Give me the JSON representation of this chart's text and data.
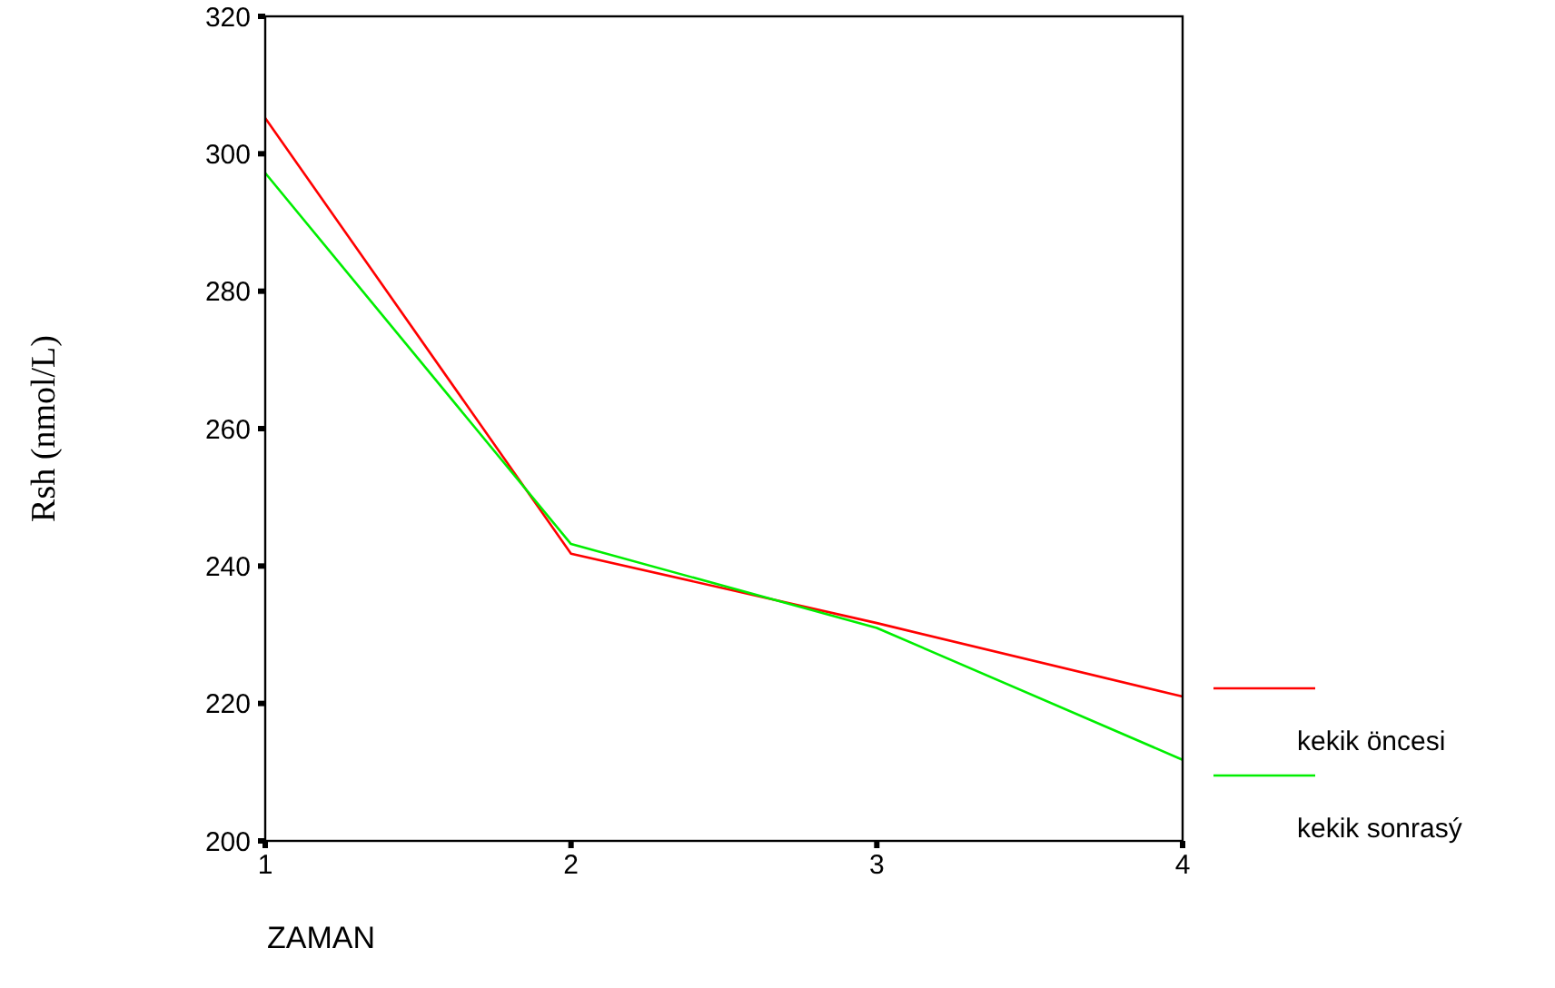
{
  "chart_data": {
    "type": "line",
    "xlabel": "ZAMAN",
    "ylabel": "Rsh (nmol/L)",
    "x": [
      1,
      2,
      3,
      4
    ],
    "xlim": [
      1,
      4
    ],
    "xticks": [
      1,
      2,
      3,
      4
    ],
    "ylim": [
      200,
      320
    ],
    "yticks": [
      200,
      220,
      240,
      260,
      280,
      300,
      320
    ],
    "grid": false,
    "legend": "right",
    "marker": "none",
    "line_style": "solid",
    "series": [
      {
        "name": "kekik öncesi",
        "color": "#ff0000",
        "values": [
          305.2,
          241.8,
          231.7,
          221.0
        ]
      },
      {
        "name": "kekik sonrasý",
        "color": "#00ee00",
        "values": [
          297.2,
          243.2,
          231.0,
          211.8
        ]
      }
    ]
  }
}
